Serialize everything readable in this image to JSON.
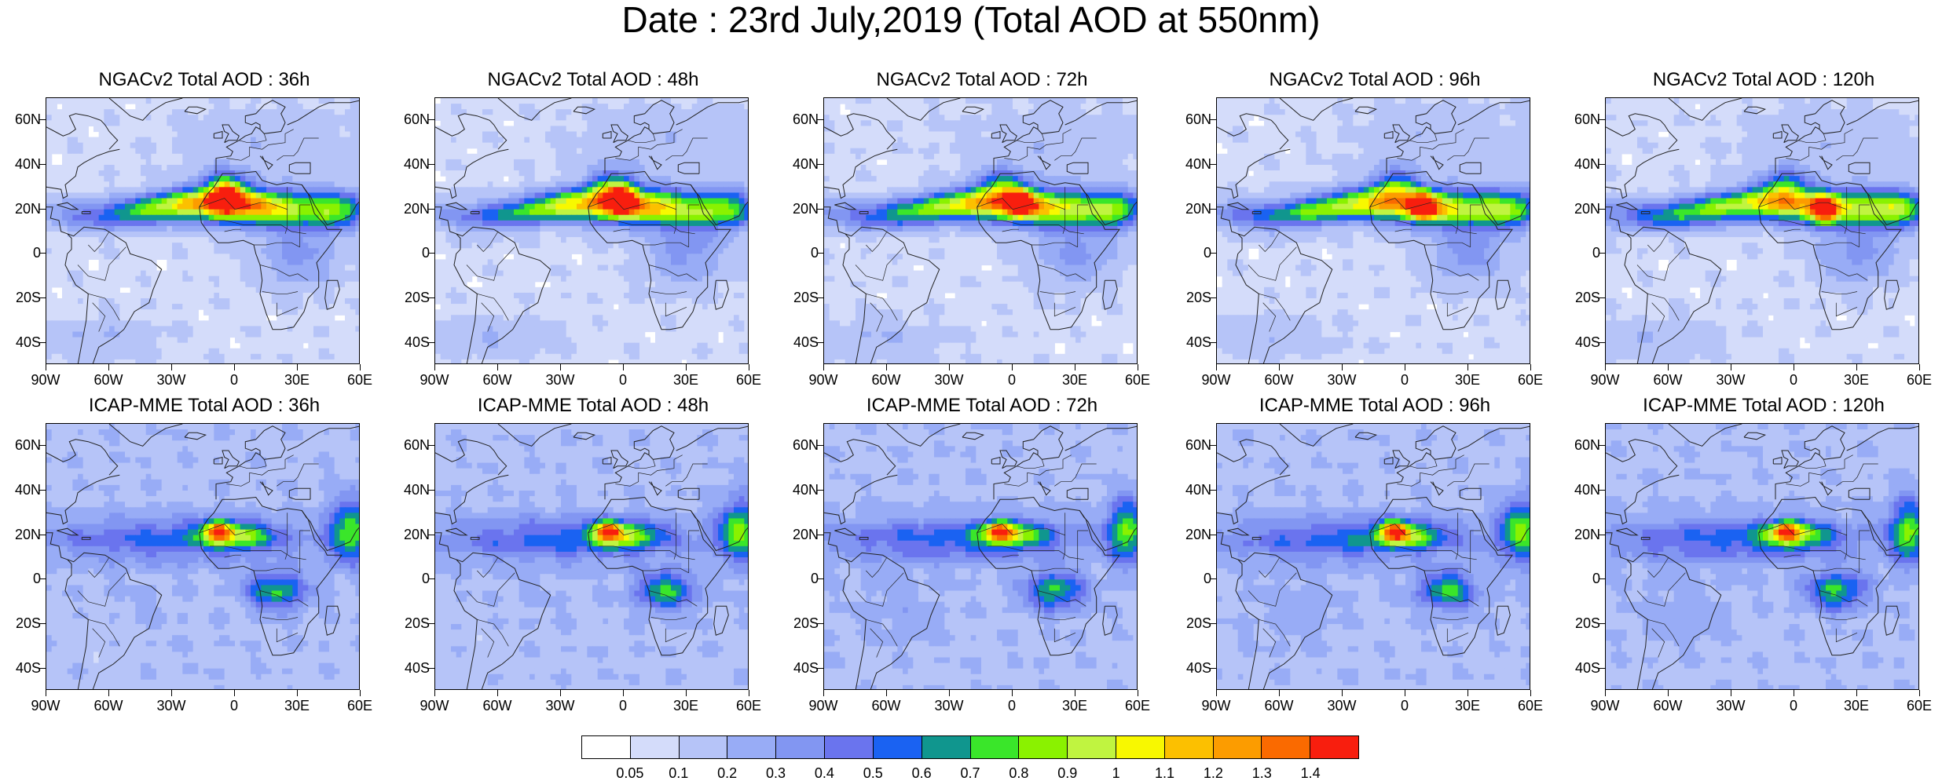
{
  "title": "Date : 23rd July,2019 (Total AOD at 550nm)",
  "map": {
    "lon_range": [
      -90,
      60
    ],
    "lat_range": [
      -50,
      70
    ],
    "lat_ticks": [
      "60N",
      "40N",
      "20N",
      "0",
      "20S",
      "40S"
    ],
    "lat_tick_values": [
      60,
      40,
      20,
      0,
      -20,
      -40
    ],
    "lon_ticks": [
      "90W",
      "60W",
      "30W",
      "0",
      "30E",
      "60E"
    ],
    "lon_tick_values": [
      -90,
      -60,
      -30,
      0,
      30,
      60
    ]
  },
  "panels": [
    {
      "title": "NGACv2 Total AOD : 36h",
      "model": "NGAC",
      "lead": 36
    },
    {
      "title": "NGACv2 Total AOD : 48h",
      "model": "NGAC",
      "lead": 48
    },
    {
      "title": "NGACv2 Total AOD : 72h",
      "model": "NGAC",
      "lead": 72
    },
    {
      "title": "NGACv2 Total AOD : 96h",
      "model": "NGAC",
      "lead": 96
    },
    {
      "title": "NGACv2 Total AOD : 120h",
      "model": "NGAC",
      "lead": 120
    },
    {
      "title": "ICAP-MME Total AOD : 36h",
      "model": "ICAP",
      "lead": 36
    },
    {
      "title": "ICAP-MME Total AOD : 48h",
      "model": "ICAP",
      "lead": 48
    },
    {
      "title": "ICAP-MME Total AOD : 72h",
      "model": "ICAP",
      "lead": 72
    },
    {
      "title": "ICAP-MME Total AOD : 96h",
      "model": "ICAP",
      "lead": 96
    },
    {
      "title": "ICAP-MME Total AOD : 120h",
      "model": "ICAP",
      "lead": 120
    }
  ],
  "colorbar": {
    "levels": [
      "0.05",
      "0.1",
      "0.2",
      "0.3",
      "0.4",
      "0.5",
      "0.6",
      "0.7",
      "0.8",
      "0.9",
      "1",
      "1.1",
      "1.2",
      "1.3",
      "1.4"
    ],
    "colors": [
      "#ffffff",
      "#d4dcfa",
      "#b6c4f8",
      "#98acf6",
      "#8296f2",
      "#6a74ee",
      "#1a62f2",
      "#10968e",
      "#3ae62a",
      "#8af200",
      "#c0f440",
      "#f8f800",
      "#fcc000",
      "#fc9c00",
      "#fa6a00",
      "#f81e0e"
    ]
  }
}
